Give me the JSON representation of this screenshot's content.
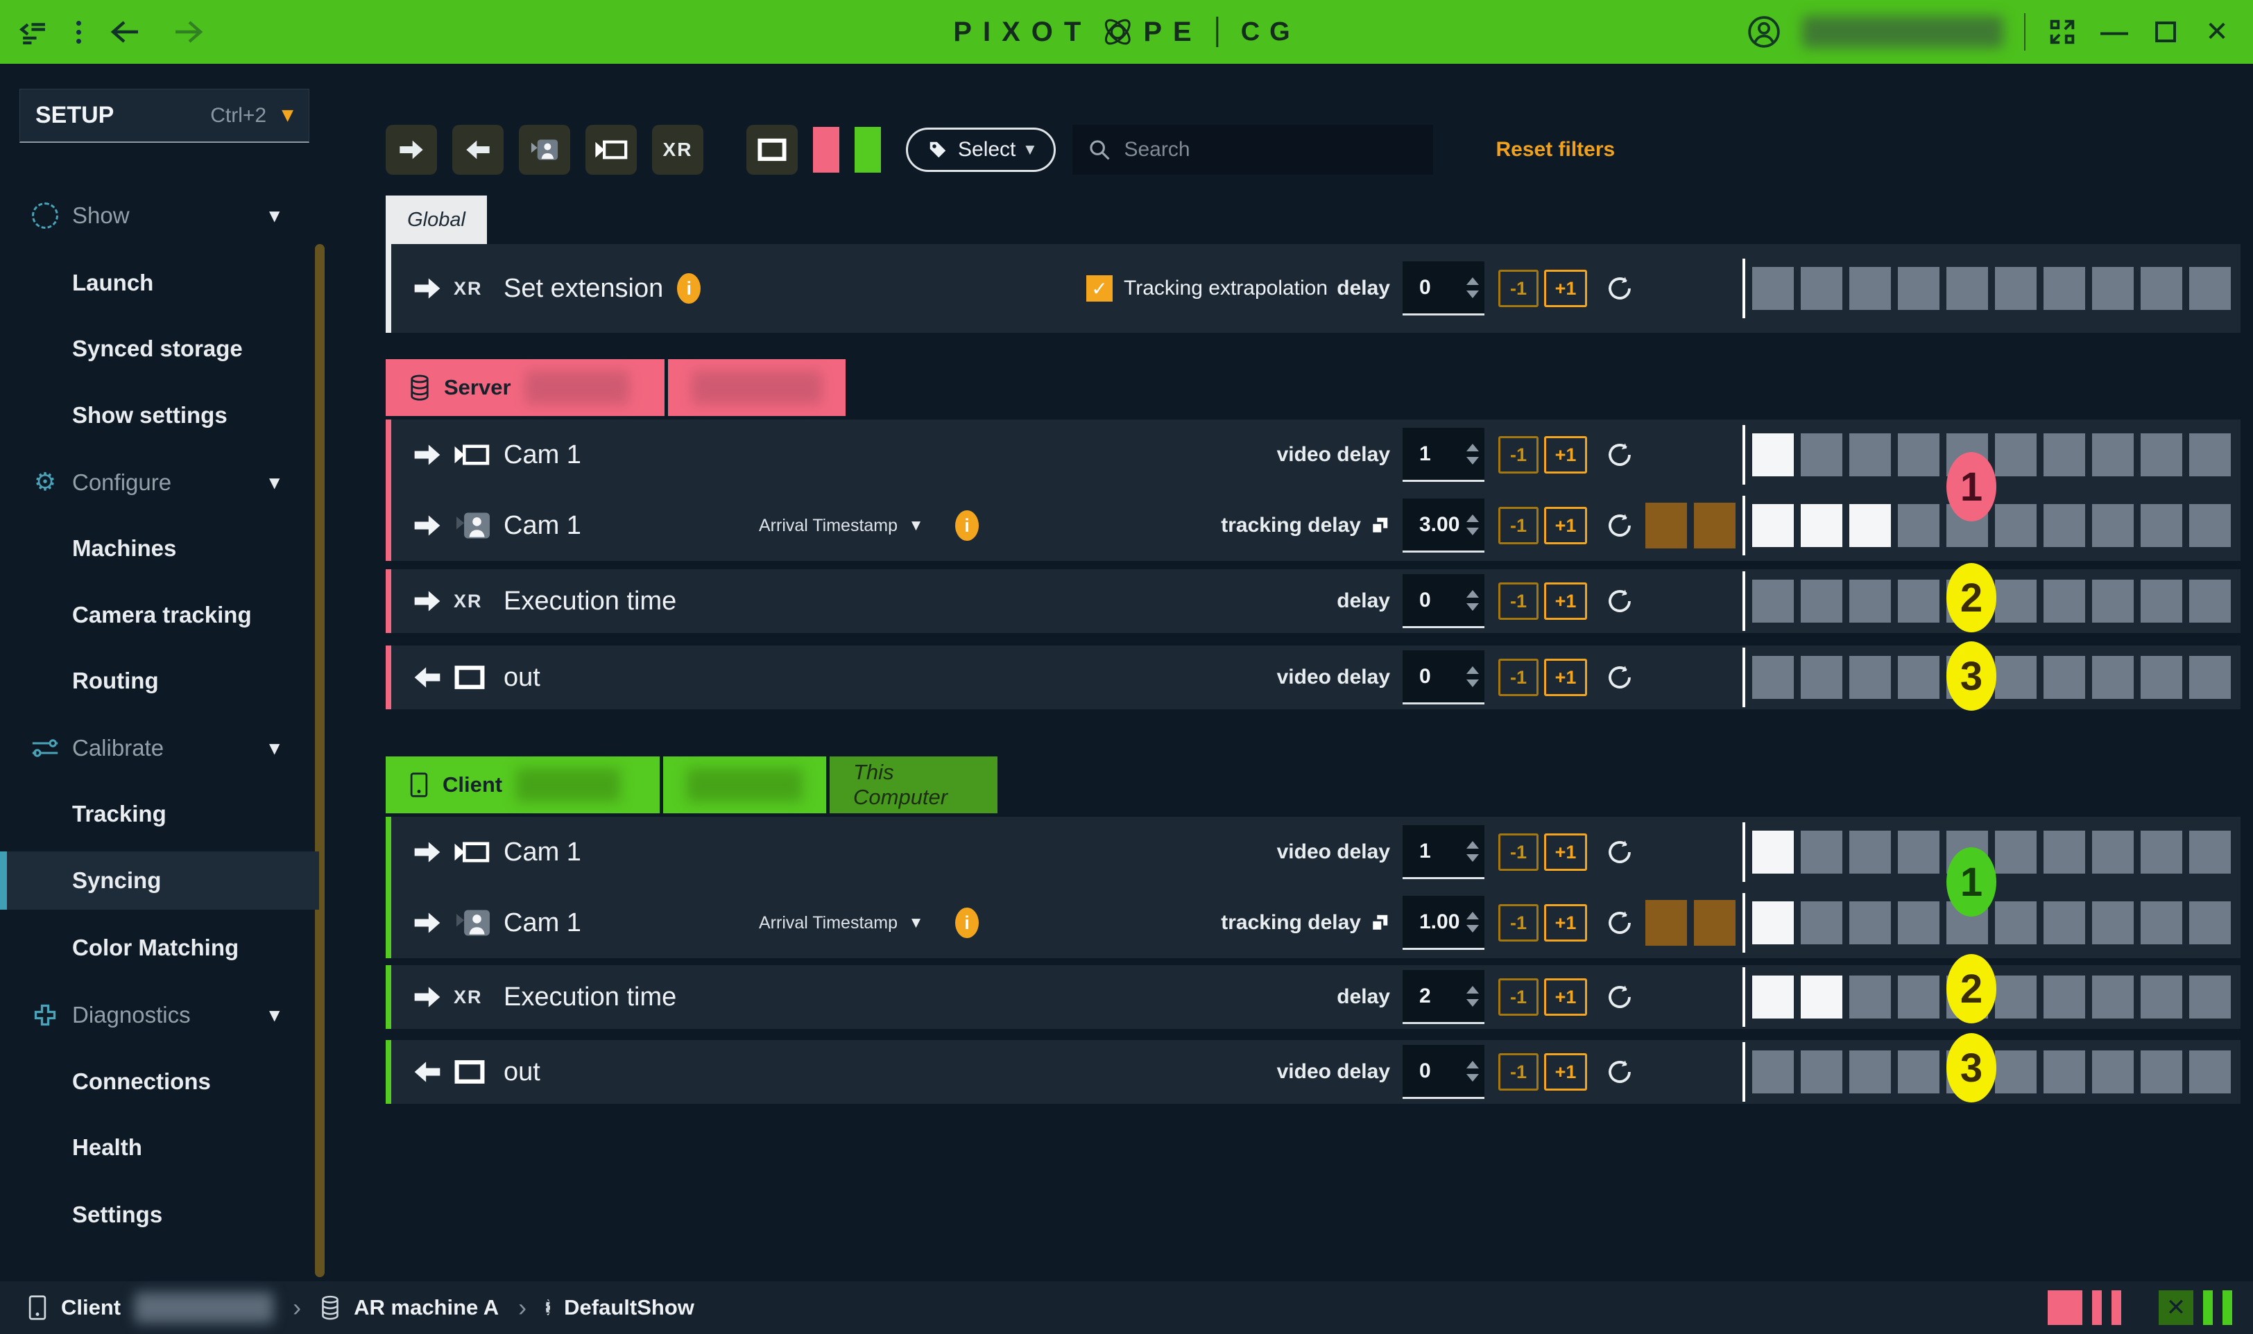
{
  "topbar": {
    "logo_pre": "PIXOT",
    "logo_post": "PE",
    "product": "CG"
  },
  "sidebar": {
    "mode_label": "SETUP",
    "mode_shortcut": "Ctrl+2",
    "entries": [
      {
        "label": "Show"
      },
      {
        "label": "Launch"
      },
      {
        "label": "Synced storage"
      },
      {
        "label": "Show settings"
      },
      {
        "label": "Configure"
      },
      {
        "label": "Machines"
      },
      {
        "label": "Camera tracking"
      },
      {
        "label": "Routing"
      },
      {
        "label": "Calibrate"
      },
      {
        "label": "Tracking"
      },
      {
        "label": "Syncing"
      },
      {
        "label": "Color Matching"
      },
      {
        "label": "Diagnostics"
      },
      {
        "label": "Connections"
      },
      {
        "label": "Health"
      },
      {
        "label": "Settings"
      }
    ],
    "selected": "Syncing"
  },
  "toolbar": {
    "xr": "XR",
    "select_label": "Select",
    "search_placeholder": "Search",
    "reset": "Reset filters"
  },
  "controls": {
    "minus": "-1",
    "plus": "+1"
  },
  "global": {
    "tab": "Global",
    "kind": "XR",
    "title": "Set extension",
    "checkbox_label": "Tracking extrapolation",
    "checkbox_checked": true,
    "delay_label": "delay",
    "value": "0",
    "bar": {
      "pre": 0,
      "filled": 0,
      "total": 10
    }
  },
  "server": {
    "label": "Server",
    "badges": [
      "1",
      "2",
      "3"
    ],
    "rows": [
      {
        "title": "Cam 1",
        "delay_label": "video delay",
        "value": "1",
        "bar": {
          "pre": 0,
          "filled": 1,
          "total": 10
        }
      },
      {
        "title": "Cam 1",
        "dropdown": "Arrival Timestamp",
        "delay_label": "tracking delay",
        "value": "3.00",
        "bar": {
          "pre": 2,
          "filled": 3,
          "total": 10
        }
      },
      {
        "kind": "XR",
        "title": "Execution time",
        "delay_label": "delay",
        "value": "0",
        "bar": {
          "pre": 0,
          "filled": 0,
          "total": 10
        }
      },
      {
        "title": "out",
        "delay_label": "video delay",
        "value": "0",
        "bar": {
          "pre": 0,
          "filled": 0,
          "total": 10
        }
      }
    ]
  },
  "client": {
    "label": "Client",
    "this_computer": "This Computer",
    "badges": [
      "1",
      "2",
      "3"
    ],
    "rows": [
      {
        "title": "Cam 1",
        "delay_label": "video delay",
        "value": "1",
        "bar": {
          "pre": 0,
          "filled": 1,
          "total": 10
        }
      },
      {
        "title": "Cam 1",
        "dropdown": "Arrival Timestamp",
        "delay_label": "tracking delay",
        "value": "1.00",
        "bar": {
          "pre": 2,
          "filled": 1,
          "total": 10
        }
      },
      {
        "kind": "XR",
        "title": "Execution time",
        "delay_label": "delay",
        "value": "2",
        "bar": {
          "pre": 0,
          "filled": 2,
          "total": 10
        }
      },
      {
        "title": "out",
        "delay_label": "video delay",
        "value": "0",
        "bar": {
          "pre": 0,
          "filled": 0,
          "total": 10
        }
      }
    ]
  },
  "statusbar": {
    "client": "Client",
    "machine": "AR machine A",
    "show": "DefaultShow"
  },
  "colors": {
    "topbar_green": "#4cc01c",
    "accent_orange": "#f2a51d",
    "server_pink": "#f2677f",
    "client_green": "#55ca20",
    "badge_yellow": "#f6ef00",
    "segment_grey": "#6f7b88",
    "segment_brown": "#8a5c1b"
  }
}
